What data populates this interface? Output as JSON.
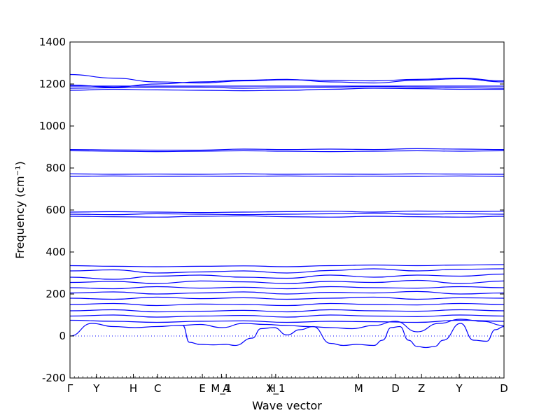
{
  "chart_data": {
    "type": "line",
    "title": "",
    "xlabel": "Wave vector",
    "ylabel": "Frequency (cm⁻¹)",
    "ylim": [
      -200,
      1400
    ],
    "yticks": [
      -200,
      0,
      200,
      400,
      600,
      800,
      1000,
      1200,
      1400
    ],
    "xlim": [
      0,
      1
    ],
    "xtick_labels": [
      {
        "x": 0.0,
        "label": "Γ"
      },
      {
        "x": 0.061,
        "label": "Y"
      },
      {
        "x": 0.146,
        "label": "H"
      },
      {
        "x": 0.202,
        "label": "C"
      },
      {
        "x": 0.305,
        "label": "E"
      },
      {
        "x": 0.349,
        "label": "M_1"
      },
      {
        "x": 0.36,
        "label": "A"
      },
      {
        "x": 0.465,
        "label": "H"
      },
      {
        "x": 0.474,
        "label": "X_1"
      },
      {
        "x": 0.665,
        "label": "M"
      },
      {
        "x": 0.75,
        "label": "D"
      },
      {
        "x": 0.81,
        "label": "Z"
      },
      {
        "x": 0.897,
        "label": "Y"
      },
      {
        "x": 1.0,
        "label": "D"
      }
    ],
    "zero_line": 0,
    "colors": {
      "bands": "#0000ff",
      "zero_line": "#0000ff",
      "axes": "#000000"
    },
    "series": [
      {
        "x": [
          0,
          0.1,
          0.2,
          0.3,
          0.4,
          0.5,
          0.6,
          0.7,
          0.8,
          0.9,
          1.0
        ],
        "y": [
          1245,
          1228,
          1210,
          1205,
          1215,
          1220,
          1218,
          1215,
          1222,
          1228,
          1215
        ]
      },
      {
        "x": [
          0,
          0.1,
          0.2,
          0.3,
          0.4,
          0.5,
          0.6,
          0.7,
          0.8,
          0.9,
          1.0
        ],
        "y": [
          1195,
          1185,
          1200,
          1210,
          1218,
          1222,
          1210,
          1205,
          1218,
          1225,
          1210
        ]
      },
      {
        "x": [
          0,
          0.1,
          0.2,
          0.3,
          0.4,
          0.5,
          0.6,
          0.7,
          0.8,
          0.9,
          1.0
        ],
        "y": [
          1190,
          1190,
          1190,
          1190,
          1190,
          1190,
          1190,
          1190,
          1190,
          1190,
          1190
        ]
      },
      {
        "x": [
          0,
          0.1,
          0.2,
          0.3,
          0.4,
          0.5,
          0.6,
          0.7,
          0.8,
          0.9,
          1.0
        ],
        "y": [
          1180,
          1182,
          1185,
          1185,
          1180,
          1182,
          1185,
          1188,
          1185,
          1182,
          1180
        ]
      },
      {
        "x": [
          0,
          0.1,
          0.2,
          0.3,
          0.4,
          0.5,
          0.6,
          0.7,
          0.8,
          0.9,
          1.0
        ],
        "y": [
          1170,
          1175,
          1172,
          1170,
          1168,
          1170,
          1175,
          1180,
          1178,
          1175,
          1175
        ]
      },
      {
        "x": [
          0,
          0.1,
          0.2,
          0.3,
          0.4,
          0.5,
          0.6,
          0.7,
          0.8,
          0.9,
          1.0
        ],
        "y": [
          888,
          886,
          885,
          885,
          890,
          888,
          890,
          888,
          892,
          890,
          888
        ]
      },
      {
        "x": [
          0,
          0.1,
          0.2,
          0.3,
          0.4,
          0.5,
          0.6,
          0.7,
          0.8,
          0.9,
          1.0
        ],
        "y": [
          882,
          880,
          878,
          880,
          882,
          880,
          878,
          880,
          882,
          880,
          882
        ]
      },
      {
        "x": [
          0,
          0.1,
          0.2,
          0.3,
          0.4,
          0.5,
          0.6,
          0.7,
          0.8,
          0.9,
          1.0
        ],
        "y": [
          772,
          770,
          771,
          770,
          772,
          770,
          771,
          770,
          772,
          771,
          770
        ]
      },
      {
        "x": [
          0,
          0.1,
          0.2,
          0.3,
          0.4,
          0.5,
          0.6,
          0.7,
          0.8,
          0.9,
          1.0
        ],
        "y": [
          760,
          762,
          760,
          761,
          760,
          762,
          760,
          761,
          760,
          762,
          760
        ]
      },
      {
        "x": [
          0,
          0.1,
          0.2,
          0.3,
          0.4,
          0.5,
          0.6,
          0.7,
          0.8,
          0.9,
          1.0
        ],
        "y": [
          590,
          592,
          590,
          588,
          590,
          592,
          594,
          590,
          595,
          592,
          594
        ]
      },
      {
        "x": [
          0,
          0.1,
          0.2,
          0.3,
          0.4,
          0.5,
          0.6,
          0.7,
          0.8,
          0.9,
          1.0
        ],
        "y": [
          580,
          578,
          582,
          580,
          578,
          580,
          582,
          585,
          580,
          582,
          580
        ]
      },
      {
        "x": [
          0,
          0.1,
          0.2,
          0.3,
          0.4,
          0.5,
          0.6,
          0.7,
          0.8,
          0.9,
          1.0
        ],
        "y": [
          570,
          568,
          566,
          570,
          572,
          568,
          566,
          570,
          568,
          566,
          570
        ]
      },
      {
        "x": [
          0,
          0.1,
          0.2,
          0.3,
          0.4,
          0.5,
          0.6,
          0.7,
          0.8,
          0.9,
          1.0
        ],
        "y": [
          335,
          332,
          330,
          332,
          334,
          330,
          335,
          338,
          335,
          338,
          340
        ]
      },
      {
        "x": [
          0,
          0.1,
          0.2,
          0.3,
          0.4,
          0.5,
          0.6,
          0.7,
          0.8,
          0.9,
          1.0
        ],
        "y": [
          310,
          315,
          300,
          305,
          310,
          300,
          312,
          320,
          310,
          318,
          320
        ]
      },
      {
        "x": [
          0,
          0.1,
          0.2,
          0.3,
          0.4,
          0.5,
          0.6,
          0.7,
          0.8,
          0.9,
          1.0
        ],
        "y": [
          280,
          270,
          285,
          290,
          280,
          275,
          290,
          280,
          290,
          285,
          295
        ]
      },
      {
        "x": [
          0,
          0.1,
          0.2,
          0.3,
          0.4,
          0.5,
          0.6,
          0.7,
          0.8,
          0.9,
          1.0
        ],
        "y": [
          255,
          260,
          250,
          262,
          258,
          250,
          260,
          255,
          265,
          250,
          262
        ]
      },
      {
        "x": [
          0,
          0.1,
          0.2,
          0.3,
          0.4,
          0.5,
          0.6,
          0.7,
          0.8,
          0.9,
          1.0
        ],
        "y": [
          230,
          225,
          235,
          228,
          232,
          225,
          235,
          230,
          228,
          235,
          230
        ]
      },
      {
        "x": [
          0,
          0.1,
          0.2,
          0.3,
          0.4,
          0.5,
          0.6,
          0.7,
          0.8,
          0.9,
          1.0
        ],
        "y": [
          205,
          210,
          200,
          205,
          210,
          200,
          208,
          205,
          212,
          200,
          205
        ]
      },
      {
        "x": [
          0,
          0.1,
          0.2,
          0.3,
          0.4,
          0.5,
          0.6,
          0.7,
          0.8,
          0.9,
          1.0
        ],
        "y": [
          180,
          175,
          185,
          178,
          182,
          175,
          180,
          185,
          175,
          182,
          180
        ]
      },
      {
        "x": [
          0,
          0.1,
          0.2,
          0.3,
          0.4,
          0.5,
          0.6,
          0.7,
          0.8,
          0.9,
          1.0
        ],
        "y": [
          150,
          155,
          145,
          152,
          150,
          145,
          155,
          150,
          148,
          155,
          150
        ]
      },
      {
        "x": [
          0,
          0.1,
          0.2,
          0.3,
          0.4,
          0.5,
          0.6,
          0.7,
          0.8,
          0.9,
          1.0
        ],
        "y": [
          120,
          125,
          115,
          118,
          122,
          115,
          125,
          120,
          118,
          125,
          120
        ]
      },
      {
        "x": [
          0,
          0.1,
          0.2,
          0.3,
          0.4,
          0.5,
          0.6,
          0.7,
          0.8,
          0.9,
          1.0
        ],
        "y": [
          95,
          100,
          90,
          95,
          98,
          90,
          100,
          95,
          92,
          100,
          95
        ]
      },
      {
        "x": [
          0,
          0.1,
          0.2,
          0.3,
          0.4,
          0.5,
          0.6,
          0.7,
          0.8,
          0.9,
          1.0
        ],
        "y": [
          75,
          70,
          65,
          70,
          72,
          65,
          70,
          68,
          65,
          75,
          70
        ]
      },
      {
        "x": [
          0,
          0.05,
          0.1,
          0.15,
          0.2,
          0.25,
          0.3,
          0.35,
          0.4,
          0.45,
          0.5,
          0.55,
          0.6,
          0.65,
          0.7,
          0.75,
          0.8,
          0.85,
          0.9,
          0.95,
          1.0
        ],
        "y": [
          0,
          60,
          45,
          40,
          45,
          50,
          55,
          40,
          60,
          55,
          50,
          45,
          40,
          35,
          50,
          70,
          20,
          60,
          80,
          70,
          50
        ]
      },
      {
        "x": [
          0.26,
          0.275,
          0.3,
          0.33,
          0.36,
          0.38,
          0.42,
          0.44,
          0.47,
          0.5,
          0.53,
          0.56,
          0.6,
          0.63,
          0.66,
          0.7,
          0.72,
          0.74,
          0.76,
          0.78,
          0.8,
          0.82,
          0.84,
          0.86,
          0.9,
          0.93,
          0.96,
          0.98,
          1.0
        ],
        "y": [
          50,
          -30,
          -40,
          -42,
          -40,
          -45,
          -10,
          35,
          40,
          5,
          30,
          45,
          -35,
          -45,
          -40,
          -45,
          -20,
          40,
          45,
          -20,
          -50,
          -55,
          -50,
          -20,
          60,
          -20,
          -25,
          30,
          45
        ]
      }
    ]
  }
}
